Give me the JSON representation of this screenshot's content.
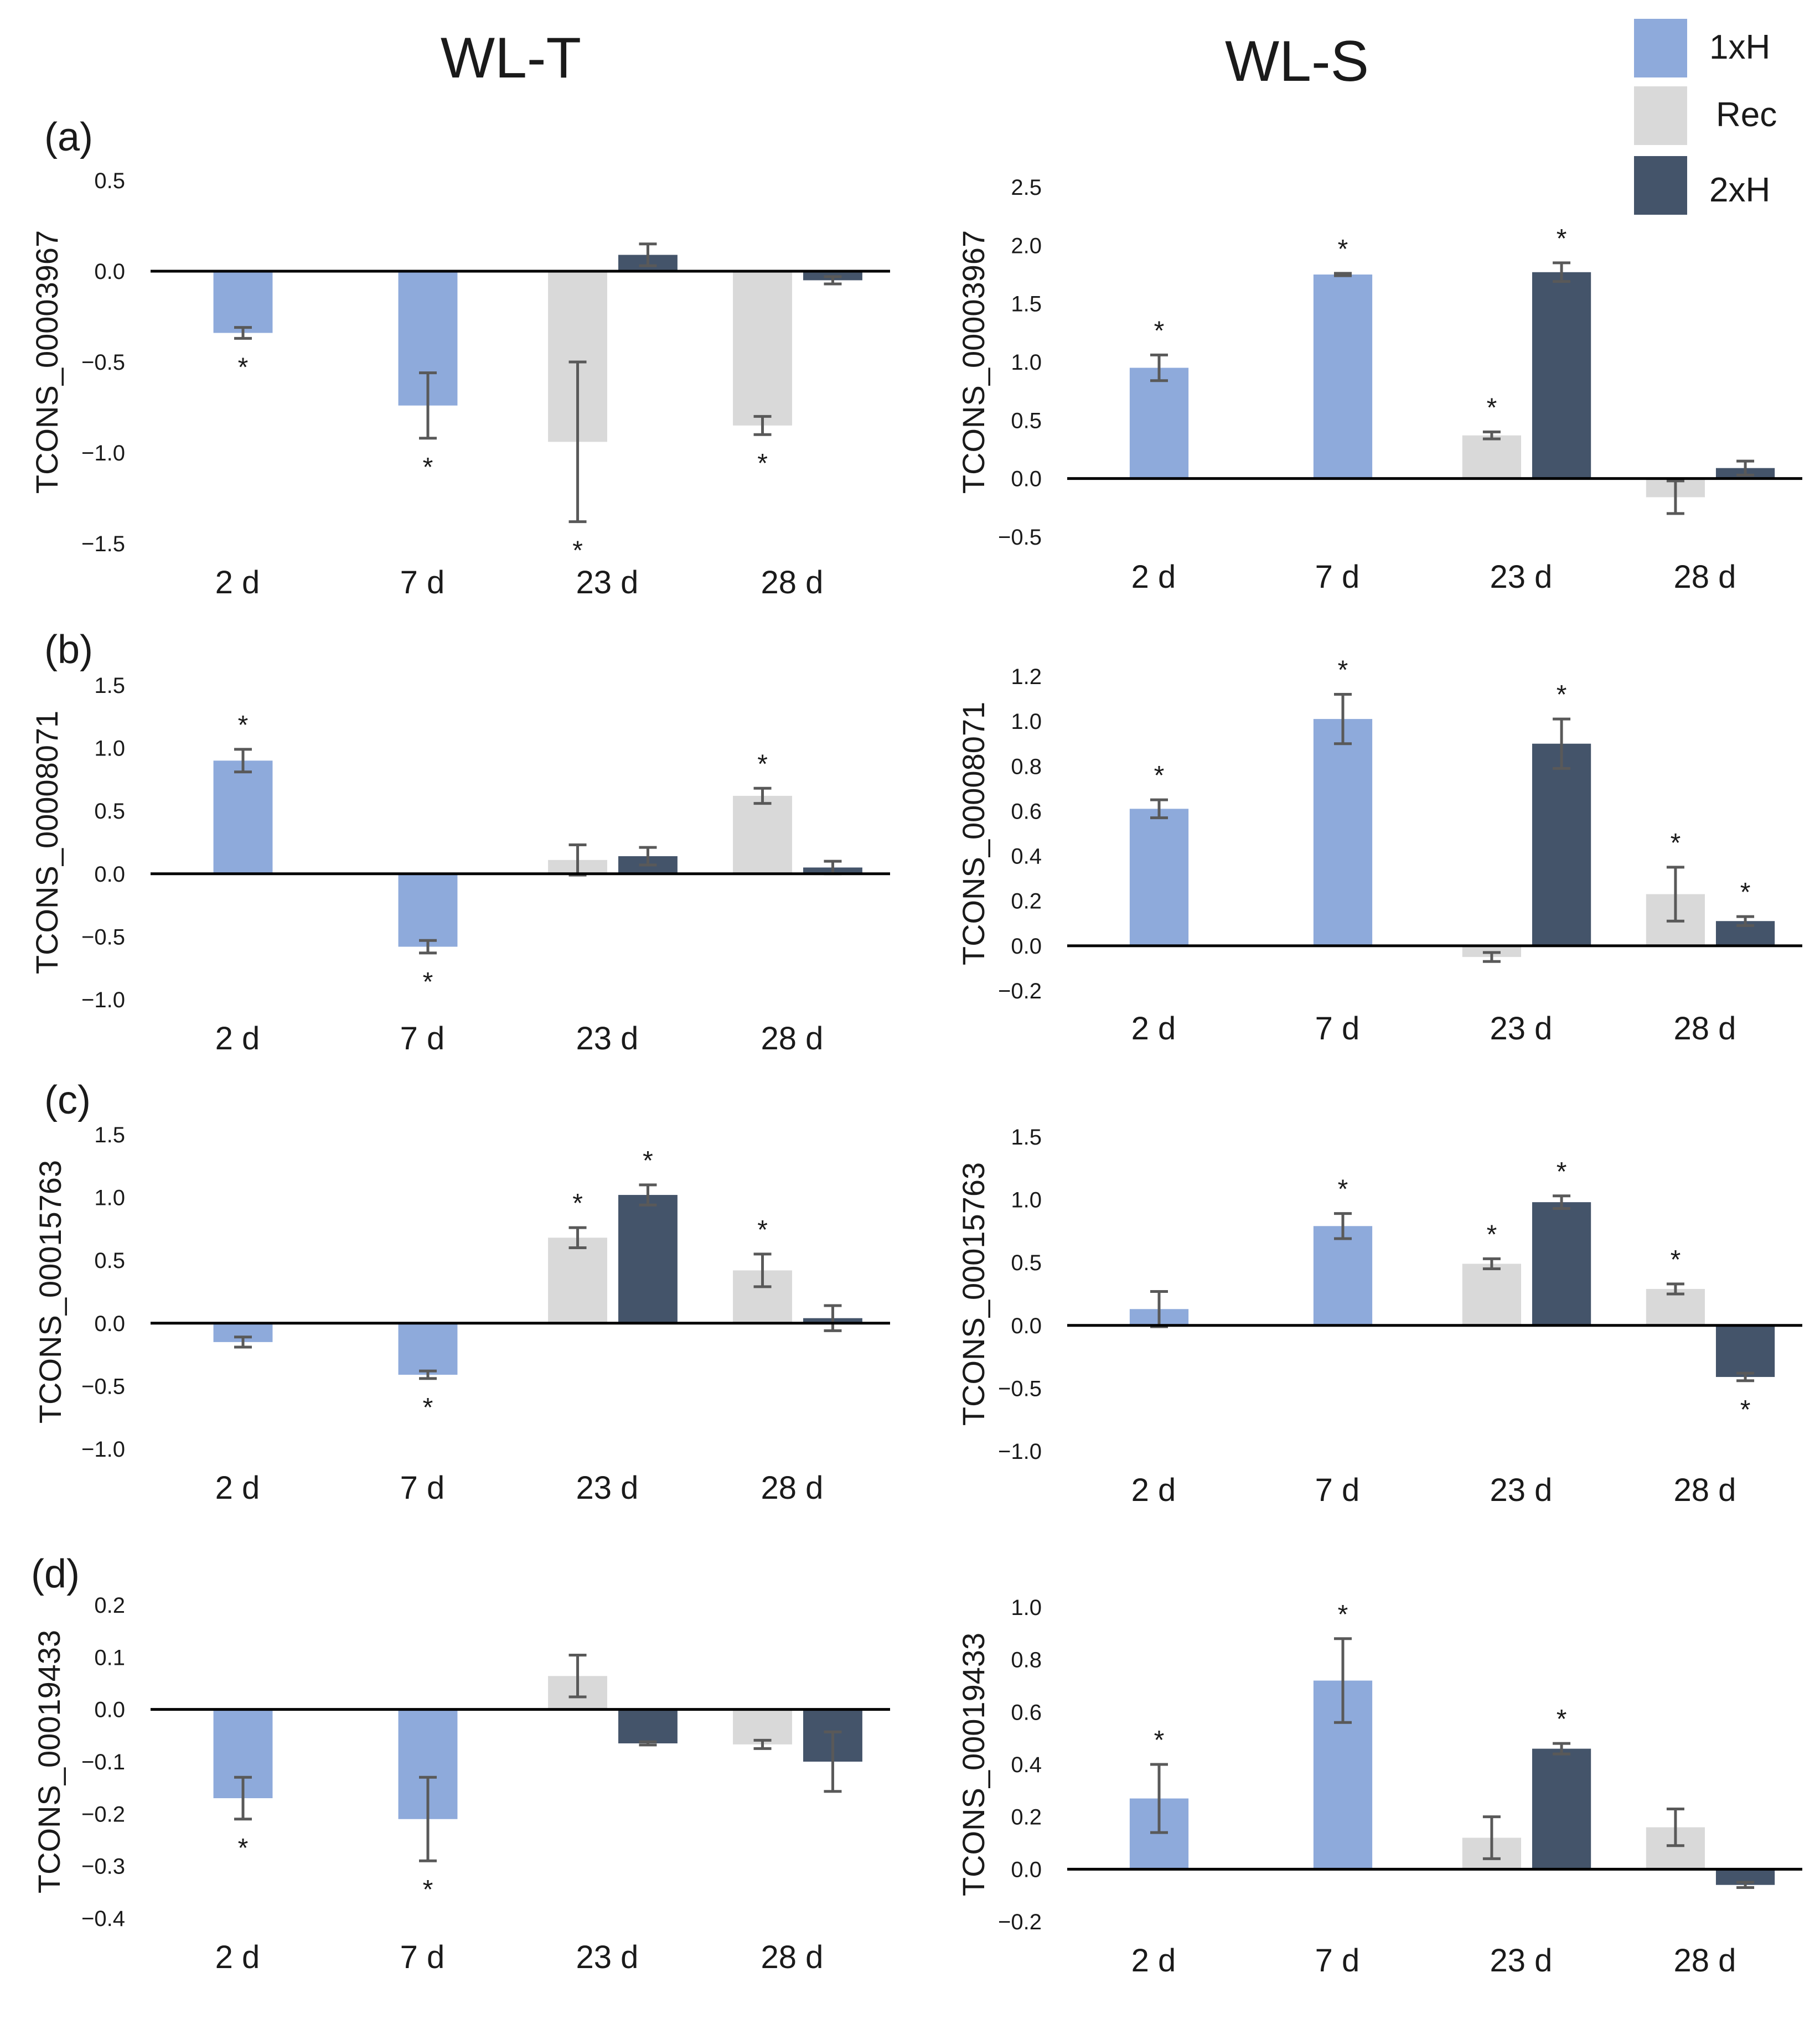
{
  "figure": {
    "column_titles": [
      "WL-T",
      "WL-S"
    ],
    "panel_labels": [
      "(a)",
      "(b)",
      "(c)",
      "(d)"
    ]
  },
  "legend": {
    "items": [
      {
        "label": "1xH",
        "color": "#8eaadb"
      },
      {
        "label": "Rec",
        "color": "#d9d9d9"
      },
      {
        "label": "2xH",
        "color": "#44546a"
      }
    ]
  },
  "chart_data": [
    {
      "type": "bar",
      "panel": "(a)",
      "column": "WL-T",
      "ylabel": "TCONS_00003967",
      "categories": [
        "2 d",
        "7 d",
        "23 d",
        "28 d"
      ],
      "ylim": [
        -1.5,
        0.5
      ],
      "yticks": [
        "0.5",
        "0.0",
        "−0.5",
        "−1.0",
        "−1.5"
      ],
      "yticks_values": [
        0.5,
        0.0,
        -0.5,
        -1.0,
        -1.5
      ],
      "series": [
        {
          "name": "1xH",
          "values": [
            -0.34,
            -0.74,
            null,
            null
          ],
          "errors": [
            0.03,
            0.18,
            null,
            null
          ]
        },
        {
          "name": "Rec",
          "values": [
            null,
            null,
            -0.94,
            -0.85
          ],
          "errors": [
            null,
            null,
            0.44,
            0.05
          ]
        },
        {
          "name": "2xH",
          "values": [
            null,
            null,
            0.09,
            -0.05
          ],
          "errors": [
            null,
            null,
            0.06,
            0.02
          ]
        }
      ],
      "significance": [
        {
          "category": "2 d",
          "series": "1xH"
        },
        {
          "category": "7 d",
          "series": "1xH"
        },
        {
          "category": "23 d",
          "series": "Rec"
        },
        {
          "category": "28 d",
          "series": "Rec"
        }
      ],
      "star_symbol": "*"
    },
    {
      "type": "bar",
      "panel": "(a)",
      "column": "WL-S",
      "ylabel": "TCONS_00003967",
      "categories": [
        "2 d",
        "7 d",
        "23 d",
        "28 d"
      ],
      "ylim": [
        -0.5,
        2.5
      ],
      "yticks": [
        "2.5",
        "2.0",
        "1.5",
        "1.0",
        "0.5",
        "0.0",
        "−0.5"
      ],
      "yticks_values": [
        2.5,
        2.0,
        1.5,
        1.0,
        0.5,
        0.0,
        -0.5
      ],
      "series": [
        {
          "name": "1xH",
          "values": [
            0.95,
            1.75,
            null,
            null
          ],
          "errors": [
            0.11,
            0.01,
            null,
            null
          ]
        },
        {
          "name": "Rec",
          "values": [
            null,
            null,
            0.37,
            -0.16
          ],
          "errors": [
            null,
            null,
            0.03,
            0.14
          ]
        },
        {
          "name": "2xH",
          "values": [
            null,
            null,
            1.77,
            0.09
          ],
          "errors": [
            null,
            null,
            0.08,
            0.06
          ]
        }
      ],
      "significance": [
        {
          "category": "2 d",
          "series": "1xH"
        },
        {
          "category": "7 d",
          "series": "1xH"
        },
        {
          "category": "23 d",
          "series": "Rec"
        },
        {
          "category": "23 d",
          "series": "2xH"
        }
      ],
      "star_symbol": "*"
    },
    {
      "type": "bar",
      "panel": "(b)",
      "column": "WL-T",
      "ylabel": "TCONS_00008071",
      "categories": [
        "2 d",
        "7 d",
        "23 d",
        "28 d"
      ],
      "ylim": [
        -1.0,
        1.5
      ],
      "yticks": [
        "1.5",
        "1.0",
        "0.5",
        "0.0",
        "−0.5",
        "−1.0"
      ],
      "yticks_values": [
        1.5,
        1.0,
        0.5,
        0.0,
        -0.5,
        -1.0
      ],
      "series": [
        {
          "name": "1xH",
          "values": [
            0.9,
            -0.58,
            null,
            null
          ],
          "errors": [
            0.09,
            0.05,
            null,
            null
          ]
        },
        {
          "name": "Rec",
          "values": [
            null,
            null,
            0.11,
            0.62
          ],
          "errors": [
            null,
            null,
            0.12,
            0.06
          ]
        },
        {
          "name": "2xH",
          "values": [
            null,
            null,
            0.14,
            0.05
          ],
          "errors": [
            null,
            null,
            0.07,
            0.05
          ]
        }
      ],
      "significance": [
        {
          "category": "2 d",
          "series": "1xH"
        },
        {
          "category": "7 d",
          "series": "1xH"
        },
        {
          "category": "28 d",
          "series": "Rec"
        }
      ],
      "star_symbol": "*"
    },
    {
      "type": "bar",
      "panel": "(b)",
      "column": "WL-S",
      "ylabel": "TCONS_00008071",
      "categories": [
        "2 d",
        "7 d",
        "23 d",
        "28 d"
      ],
      "ylim": [
        -0.2,
        1.2
      ],
      "yticks": [
        "1.2",
        "1.0",
        "0.8",
        "0.6",
        "0.4",
        "0.2",
        "0.0",
        "−0.2"
      ],
      "yticks_values": [
        1.2,
        1.0,
        0.8,
        0.6,
        0.4,
        0.2,
        0.0,
        -0.2
      ],
      "series": [
        {
          "name": "1xH",
          "values": [
            0.61,
            1.01,
            null,
            null
          ],
          "errors": [
            0.04,
            0.11,
            null,
            null
          ]
        },
        {
          "name": "Rec",
          "values": [
            null,
            null,
            -0.05,
            0.23
          ],
          "errors": [
            null,
            null,
            0.02,
            0.12
          ]
        },
        {
          "name": "2xH",
          "values": [
            null,
            null,
            0.9,
            0.11
          ],
          "errors": [
            null,
            null,
            0.11,
            0.02
          ]
        }
      ],
      "significance": [
        {
          "category": "2 d",
          "series": "1xH"
        },
        {
          "category": "7 d",
          "series": "1xH"
        },
        {
          "category": "23 d",
          "series": "2xH"
        },
        {
          "category": "28 d",
          "series": "Rec"
        },
        {
          "category": "28 d",
          "series": "2xH"
        }
      ],
      "star_symbol": "*"
    },
    {
      "type": "bar",
      "panel": "(c)",
      "column": "WL-T",
      "ylabel": "TCONS_00015763",
      "categories": [
        "2 d",
        "7 d",
        "23 d",
        "28 d"
      ],
      "ylim": [
        -1.0,
        1.5
      ],
      "yticks": [
        "1.5",
        "1.0",
        "0.5",
        "0.0",
        "−0.5",
        "−1.0"
      ],
      "yticks_values": [
        1.5,
        1.0,
        0.5,
        0.0,
        -0.5,
        -1.0
      ],
      "series": [
        {
          "name": "1xH",
          "values": [
            -0.15,
            -0.41,
            null,
            null
          ],
          "errors": [
            0.04,
            0.03,
            null,
            null
          ]
        },
        {
          "name": "Rec",
          "values": [
            null,
            null,
            0.68,
            0.42
          ],
          "errors": [
            null,
            null,
            0.08,
            0.13
          ]
        },
        {
          "name": "2xH",
          "values": [
            null,
            null,
            1.02,
            0.04
          ],
          "errors": [
            null,
            null,
            0.08,
            0.1
          ]
        }
      ],
      "significance": [
        {
          "category": "7 d",
          "series": "1xH"
        },
        {
          "category": "23 d",
          "series": "Rec"
        },
        {
          "category": "23 d",
          "series": "2xH"
        },
        {
          "category": "28 d",
          "series": "Rec"
        }
      ],
      "star_symbol": "*"
    },
    {
      "type": "bar",
      "panel": "(c)",
      "column": "WL-S",
      "ylabel": "TCONS_00015763",
      "categories": [
        "2 d",
        "7 d",
        "23 d",
        "28 d"
      ],
      "ylim": [
        -1.0,
        1.5
      ],
      "yticks": [
        "1.5",
        "1.0",
        "0.5",
        "0.0",
        "−0.5",
        "−1.0"
      ],
      "yticks_values": [
        1.5,
        1.0,
        0.5,
        0.0,
        -0.5,
        -1.0
      ],
      "series": [
        {
          "name": "1xH",
          "values": [
            0.13,
            0.79,
            null,
            null
          ],
          "errors": [
            0.14,
            0.1,
            null,
            null
          ]
        },
        {
          "name": "Rec",
          "values": [
            null,
            null,
            0.49,
            0.29
          ],
          "errors": [
            null,
            null,
            0.04,
            0.04
          ]
        },
        {
          "name": "2xH",
          "values": [
            null,
            null,
            0.98,
            -0.41
          ],
          "errors": [
            null,
            null,
            0.05,
            0.03
          ]
        }
      ],
      "significance": [
        {
          "category": "7 d",
          "series": "1xH"
        },
        {
          "category": "23 d",
          "series": "Rec"
        },
        {
          "category": "23 d",
          "series": "2xH"
        },
        {
          "category": "28 d",
          "series": "Rec"
        },
        {
          "category": "28 d",
          "series": "2xH"
        }
      ],
      "star_symbol": "*"
    },
    {
      "type": "bar",
      "panel": "(d)",
      "column": "WL-T",
      "ylabel": "TCONS_00019433",
      "categories": [
        "2 d",
        "7 d",
        "23 d",
        "28 d"
      ],
      "ylim": [
        -0.4,
        0.2
      ],
      "yticks": [
        "0.2",
        "0.1",
        "0.0",
        "−0.1",
        "−0.2",
        "−0.3",
        "−0.4"
      ],
      "yticks_values": [
        0.2,
        0.1,
        0.0,
        -0.1,
        -0.2,
        -0.3,
        -0.4
      ],
      "series": [
        {
          "name": "1xH",
          "values": [
            -0.17,
            -0.21,
            null,
            null
          ],
          "errors": [
            0.04,
            0.08,
            null,
            null
          ]
        },
        {
          "name": "Rec",
          "values": [
            null,
            null,
            0.064,
            -0.067
          ],
          "errors": [
            null,
            null,
            0.04,
            0.008
          ]
        },
        {
          "name": "2xH",
          "values": [
            null,
            null,
            -0.065,
            -0.1
          ],
          "errors": [
            null,
            null,
            0.003,
            0.057
          ]
        }
      ],
      "significance": [
        {
          "category": "2 d",
          "series": "1xH"
        },
        {
          "category": "7 d",
          "series": "1xH"
        }
      ],
      "star_symbol": "*"
    },
    {
      "type": "bar",
      "panel": "(d)",
      "column": "WL-S",
      "ylabel": "TCONS_00019433",
      "categories": [
        "2 d",
        "7 d",
        "23 d",
        "28 d"
      ],
      "ylim": [
        -0.2,
        1.0
      ],
      "yticks": [
        "1.0",
        "0.8",
        "0.6",
        "0.4",
        "0.2",
        "0.0",
        "−0.2"
      ],
      "yticks_values": [
        1.0,
        0.8,
        0.6,
        0.4,
        0.2,
        0.0,
        -0.2
      ],
      "series": [
        {
          "name": "1xH",
          "values": [
            0.27,
            0.72,
            null,
            null
          ],
          "errors": [
            0.13,
            0.16,
            null,
            null
          ]
        },
        {
          "name": "Rec",
          "values": [
            null,
            null,
            0.12,
            0.16
          ],
          "errors": [
            null,
            null,
            0.08,
            0.07
          ]
        },
        {
          "name": "2xH",
          "values": [
            null,
            null,
            0.46,
            -0.06
          ],
          "errors": [
            null,
            null,
            0.02,
            0.01
          ]
        }
      ],
      "significance": [
        {
          "category": "2 d",
          "series": "1xH"
        },
        {
          "category": "7 d",
          "series": "1xH"
        },
        {
          "category": "23 d",
          "series": "2xH"
        }
      ],
      "star_symbol": "*"
    }
  ]
}
